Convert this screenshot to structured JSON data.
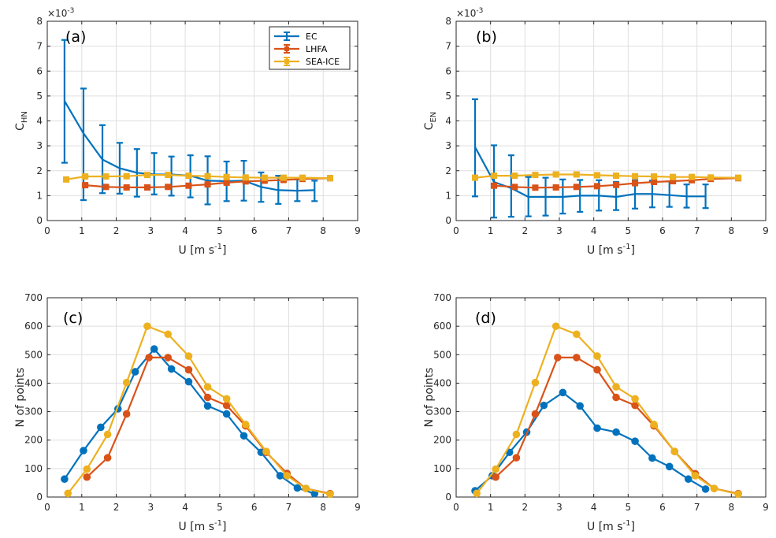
{
  "colors": {
    "EC": "#0072bd",
    "LHFA": "#d95319",
    "SEA-ICE": "#edb120"
  },
  "legend": [
    "EC",
    "LHFA",
    "SEA-ICE"
  ],
  "chart_data": [
    {
      "id": "a",
      "type": "line",
      "panel_label": "(a)",
      "title": "",
      "xlabel": "U [m s",
      "xlabel_sup": "-1",
      "xlabel_end": "]",
      "ylabel_main": "C",
      "ylabel_sub": "HN",
      "exponent_label": "×10",
      "exponent_power": "-3",
      "xlim": [
        0,
        9
      ],
      "ylim": [
        0,
        8
      ],
      "xticks": [
        "0",
        "1",
        "2",
        "3",
        "4",
        "5",
        "6",
        "7",
        "8",
        "9"
      ],
      "yticks": [
        "0",
        "1",
        "2",
        "3",
        "4",
        "5",
        "6",
        "7",
        "8"
      ],
      "grid": true,
      "legend_position": "top-right",
      "show_legend": true,
      "errorbars": true,
      "series": [
        {
          "name": "EC",
          "marker": "none",
          "x": [
            0.5,
            1.05,
            1.6,
            2.1,
            2.6,
            3.1,
            3.6,
            4.15,
            4.65,
            5.2,
            5.7,
            6.2,
            6.7,
            7.25,
            7.75
          ],
          "y": [
            4.8,
            3.5,
            2.45,
            2.1,
            1.92,
            1.85,
            1.85,
            1.8,
            1.6,
            1.58,
            1.6,
            1.35,
            1.22,
            1.2,
            1.22
          ],
          "err_low": [
            2.32,
            0.82,
            1.1,
            1.08,
            0.96,
            1.05,
            1.0,
            0.93,
            0.65,
            0.78,
            0.8,
            0.75,
            0.67,
            0.78,
            0.78
          ],
          "err_high": [
            7.25,
            5.3,
            3.83,
            3.12,
            2.87,
            2.71,
            2.57,
            2.62,
            2.58,
            2.37,
            2.4,
            1.93,
            1.8,
            1.65,
            1.6
          ]
        },
        {
          "name": "LHFA",
          "marker": "square",
          "x": [
            1.1,
            1.7,
            2.3,
            2.9,
            3.5,
            4.1,
            4.65,
            5.2,
            5.75,
            6.3,
            6.85,
            7.4,
            8.2
          ],
          "y": [
            1.42,
            1.35,
            1.33,
            1.33,
            1.35,
            1.4,
            1.45,
            1.52,
            1.57,
            1.6,
            1.63,
            1.67,
            1.7
          ],
          "err_low": [
            1.38,
            1.31,
            1.29,
            1.29,
            1.31,
            1.36,
            1.41,
            1.48,
            1.53,
            1.56,
            1.59,
            1.63,
            1.66
          ],
          "err_high": [
            1.46,
            1.39,
            1.37,
            1.37,
            1.39,
            1.44,
            1.49,
            1.56,
            1.61,
            1.64,
            1.67,
            1.71,
            1.74
          ]
        },
        {
          "name": "SEA-ICE",
          "marker": "square",
          "x": [
            0.55,
            1.1,
            1.7,
            2.3,
            2.9,
            3.5,
            4.1,
            4.65,
            5.2,
            5.75,
            6.3,
            6.85,
            7.4,
            8.2
          ],
          "y": [
            1.65,
            1.77,
            1.77,
            1.78,
            1.83,
            1.83,
            1.8,
            1.78,
            1.75,
            1.73,
            1.72,
            1.72,
            1.72,
            1.7
          ],
          "err_low": [
            1.6,
            1.72,
            1.72,
            1.73,
            1.78,
            1.78,
            1.75,
            1.73,
            1.7,
            1.68,
            1.67,
            1.67,
            1.67,
            1.65
          ],
          "err_high": [
            1.7,
            1.82,
            1.82,
            1.83,
            1.88,
            1.88,
            1.85,
            1.83,
            1.8,
            1.78,
            1.77,
            1.77,
            1.77,
            1.75
          ]
        }
      ]
    },
    {
      "id": "b",
      "type": "line",
      "panel_label": "(b)",
      "title": "",
      "xlabel": "U [m s",
      "xlabel_sup": "-1",
      "xlabel_end": "]",
      "ylabel_main": "C",
      "ylabel_sub": "EN",
      "exponent_label": "×10",
      "exponent_power": "-3",
      "xlim": [
        0,
        9
      ],
      "ylim": [
        0,
        8
      ],
      "xticks": [
        "0",
        "1",
        "2",
        "3",
        "4",
        "5",
        "6",
        "7",
        "8",
        "9"
      ],
      "yticks": [
        "0",
        "1",
        "2",
        "3",
        "4",
        "5",
        "6",
        "7",
        "8"
      ],
      "grid": true,
      "legend_position": "top-right",
      "show_legend": false,
      "errorbars": true,
      "series": [
        {
          "name": "EC",
          "marker": "none",
          "x": [
            0.55,
            1.1,
            1.6,
            2.1,
            2.6,
            3.1,
            3.6,
            4.15,
            4.65,
            5.2,
            5.7,
            6.2,
            6.7,
            7.25
          ],
          "y": [
            2.95,
            1.55,
            1.3,
            0.95,
            0.95,
            0.95,
            1.0,
            1.0,
            0.95,
            1.07,
            1.07,
            1.02,
            0.97,
            0.97
          ],
          "err_low": [
            0.97,
            0.12,
            0.15,
            0.17,
            0.2,
            0.28,
            0.35,
            0.4,
            0.42,
            0.48,
            0.53,
            0.55,
            0.52,
            0.5
          ],
          "err_high": [
            4.87,
            3.02,
            2.62,
            1.75,
            1.72,
            1.65,
            1.63,
            1.62,
            1.55,
            1.62,
            1.6,
            1.57,
            1.45,
            1.45
          ]
        },
        {
          "name": "LHFA",
          "marker": "square",
          "x": [
            1.1,
            1.7,
            2.3,
            2.9,
            3.5,
            4.1,
            4.65,
            5.2,
            5.75,
            6.3,
            6.85,
            7.4,
            8.2
          ],
          "y": [
            1.4,
            1.35,
            1.32,
            1.33,
            1.35,
            1.38,
            1.43,
            1.5,
            1.55,
            1.58,
            1.62,
            1.67,
            1.7
          ],
          "err_low": [
            1.36,
            1.31,
            1.28,
            1.29,
            1.31,
            1.34,
            1.39,
            1.46,
            1.51,
            1.54,
            1.58,
            1.63,
            1.66
          ],
          "err_high": [
            1.44,
            1.39,
            1.36,
            1.37,
            1.39,
            1.42,
            1.47,
            1.54,
            1.59,
            1.62,
            1.66,
            1.71,
            1.74
          ]
        },
        {
          "name": "SEA-ICE",
          "marker": "square",
          "x": [
            0.55,
            1.1,
            1.7,
            2.3,
            2.9,
            3.5,
            4.1,
            4.65,
            5.2,
            5.75,
            6.3,
            6.85,
            7.4,
            8.2
          ],
          "y": [
            1.72,
            1.8,
            1.8,
            1.83,
            1.85,
            1.85,
            1.82,
            1.8,
            1.78,
            1.77,
            1.75,
            1.75,
            1.73,
            1.72
          ],
          "err_low": [
            1.67,
            1.75,
            1.75,
            1.78,
            1.8,
            1.8,
            1.77,
            1.75,
            1.73,
            1.72,
            1.7,
            1.7,
            1.68,
            1.67
          ],
          "err_high": [
            1.77,
            1.85,
            1.85,
            1.88,
            1.9,
            1.9,
            1.87,
            1.85,
            1.83,
            1.82,
            1.8,
            1.8,
            1.78,
            1.77
          ]
        }
      ]
    },
    {
      "id": "c",
      "type": "line",
      "panel_label": "(c)",
      "title": "",
      "xlabel": "U [m s",
      "xlabel_sup": "-1",
      "xlabel_end": "]",
      "ylabel_main": "N of points",
      "ylabel_sub": "",
      "xlim": [
        0,
        9
      ],
      "ylim": [
        0,
        700
      ],
      "xticks": [
        "0",
        "1",
        "2",
        "3",
        "4",
        "5",
        "6",
        "7",
        "8",
        "9"
      ],
      "yticks": [
        "0",
        "100",
        "200",
        "300",
        "400",
        "500",
        "600",
        "700"
      ],
      "grid": true,
      "show_legend": false,
      "errorbars": false,
      "series": [
        {
          "name": "EC",
          "marker": "circle",
          "x": [
            0.5,
            1.05,
            1.55,
            2.05,
            2.55,
            3.1,
            3.6,
            4.1,
            4.65,
            5.2,
            5.7,
            6.2,
            6.75,
            7.25,
            7.75
          ],
          "y": [
            63,
            163,
            245,
            310,
            440,
            520,
            450,
            405,
            320,
            292,
            215,
            157,
            75,
            32,
            12
          ]
        },
        {
          "name": "LHFA",
          "marker": "circle",
          "x": [
            1.15,
            1.75,
            2.3,
            2.95,
            3.5,
            4.1,
            4.65,
            5.2,
            5.75,
            6.35,
            6.95,
            7.5,
            8.2
          ],
          "y": [
            70,
            138,
            292,
            490,
            490,
            447,
            350,
            322,
            250,
            157,
            83,
            30,
            12
          ]
        },
        {
          "name": "SEA-ICE",
          "marker": "circle",
          "x": [
            0.6,
            1.15,
            1.75,
            2.3,
            2.9,
            3.5,
            4.1,
            4.65,
            5.2,
            5.75,
            6.35,
            6.95,
            7.5,
            8.2
          ],
          "y": [
            13,
            98,
            220,
            402,
            600,
            572,
            495,
            387,
            345,
            255,
            160,
            75,
            30,
            10
          ]
        }
      ]
    },
    {
      "id": "d",
      "type": "line",
      "panel_label": "(d)",
      "title": "",
      "xlabel": "U [m s",
      "xlabel_sup": "-1",
      "xlabel_end": "]",
      "ylabel_main": "N of points",
      "ylabel_sub": "",
      "xlim": [
        0,
        9
      ],
      "ylim": [
        0,
        700
      ],
      "xticks": [
        "0",
        "1",
        "2",
        "3",
        "4",
        "5",
        "6",
        "7",
        "8",
        "9"
      ],
      "yticks": [
        "0",
        "100",
        "200",
        "300",
        "400",
        "500",
        "600",
        "700"
      ],
      "grid": true,
      "show_legend": false,
      "errorbars": false,
      "series": [
        {
          "name": "EC",
          "marker": "circle",
          "x": [
            0.55,
            1.05,
            1.55,
            2.05,
            2.55,
            3.1,
            3.6,
            4.1,
            4.65,
            5.2,
            5.7,
            6.2,
            6.75,
            7.25
          ],
          "y": [
            22,
            75,
            157,
            228,
            322,
            367,
            320,
            242,
            228,
            196,
            137,
            107,
            63,
            28
          ]
        },
        {
          "name": "LHFA",
          "marker": "circle",
          "x": [
            1.15,
            1.75,
            2.3,
            2.95,
            3.5,
            4.1,
            4.65,
            5.2,
            5.75,
            6.35,
            6.95,
            7.5,
            8.2
          ],
          "y": [
            70,
            138,
            292,
            490,
            490,
            447,
            350,
            322,
            250,
            160,
            82,
            30,
            12
          ]
        },
        {
          "name": "SEA-ICE",
          "marker": "circle",
          "x": [
            0.6,
            1.15,
            1.75,
            2.3,
            2.9,
            3.5,
            4.1,
            4.65,
            5.2,
            5.75,
            6.35,
            6.95,
            7.5,
            8.2
          ],
          "y": [
            13,
            98,
            220,
            402,
            600,
            572,
            495,
            387,
            345,
            255,
            160,
            75,
            30,
            10
          ]
        }
      ]
    }
  ]
}
